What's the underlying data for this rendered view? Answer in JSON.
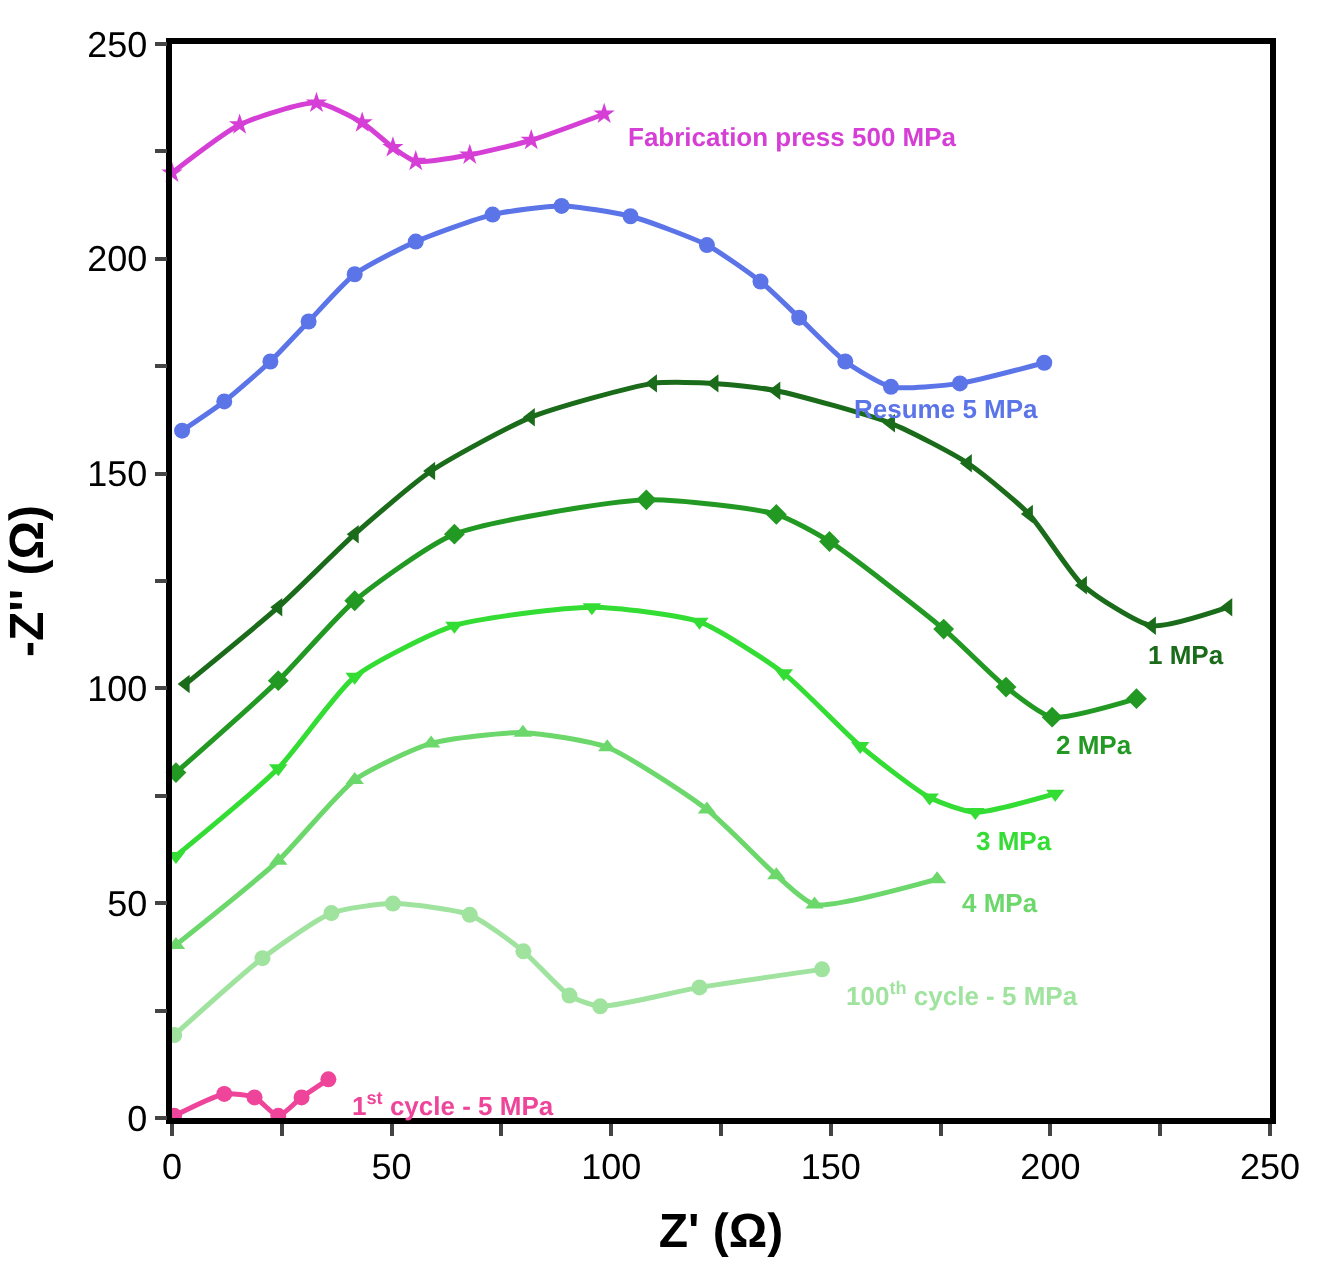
{
  "chart_data": {
    "type": "line",
    "xlabel": "Z' (Ω)",
    "ylabel": "-Z'' (Ω)",
    "xlim": [
      0,
      250
    ],
    "ylim": [
      0,
      250
    ],
    "xticks": [
      0,
      {
        "value": 25,
        "label": null
      },
      50,
      {
        "value": 75,
        "label": null
      },
      100,
      {
        "value": 125,
        "label": null
      },
      150,
      {
        "value": 175,
        "label": null
      },
      200,
      {
        "value": 225,
        "label": null
      },
      250
    ],
    "yticks": [
      0,
      {
        "value": 25,
        "label": null
      },
      50,
      {
        "value": 75,
        "label": null
      },
      100,
      {
        "value": 125,
        "label": null
      },
      150,
      {
        "value": 175,
        "label": null
      },
      200,
      {
        "value": 225,
        "label": null
      },
      250
    ],
    "legend": false,
    "line_style": "solid",
    "series": [
      {
        "name": "Fabrication press 500 MPa",
        "color": "#d63fd6",
        "marker": "star",
        "x": [
          0,
          15.4,
          32.9,
          43.3,
          50.3,
          55.5,
          67.8,
          81.8,
          98.4
        ],
        "values": [
          220,
          231.2,
          236.3,
          231.7,
          225.9,
          222.7,
          224.2,
          227.6,
          233.7
        ]
      },
      {
        "name": "Resume 5 MPa",
        "color": "#5b74e8",
        "marker": "circle",
        "x": [
          2.3,
          11.9,
          22.4,
          31.1,
          41.6,
          55.5,
          73,
          88.7,
          104.4,
          121.8,
          134,
          142.8,
          153.3,
          163.7,
          179.4,
          198.6
        ],
        "values": [
          160,
          166.8,
          176.1,
          185.4,
          196.4,
          204,
          210.3,
          212.3,
          209.9,
          203.2,
          194.7,
          186.3,
          176.1,
          170.2,
          171,
          175.8
        ]
      },
      {
        "name": "1 MPa",
        "color": "#1a6b1a",
        "marker": "triangle-left",
        "x": [
          3.1,
          24.2,
          41.6,
          59,
          81.7,
          109.5,
          123.5,
          137.6,
          163.7,
          181.2,
          195.1,
          207.4,
          223.1,
          240.5
        ],
        "values": [
          101,
          118.9,
          135.9,
          150.6,
          163.1,
          171,
          171,
          169.3,
          161.7,
          152.4,
          140.6,
          124,
          114.6,
          118.9
        ]
      },
      {
        "name": "2 MPa",
        "color": "#229922",
        "marker": "diamond",
        "x": [
          0.9,
          24.2,
          41.6,
          64.3,
          108,
          137.6,
          149.7,
          175.7,
          189.9,
          200.4,
          219.6
        ],
        "values": [
          80.4,
          101.8,
          120.4,
          135.9,
          143.9,
          140.5,
          134.2,
          113.8,
          100.3,
          93.3,
          97.6
        ]
      },
      {
        "name": "3 MPa",
        "color": "#33dd33",
        "marker": "triangle-down",
        "x": [
          0.9,
          24.2,
          41.6,
          64.3,
          95.6,
          120.1,
          139.3,
          156.7,
          172.5,
          182.9,
          201.1
        ],
        "values": [
          61,
          81.4,
          102.7,
          114.6,
          118.9,
          115.5,
          103.5,
          86.6,
          74.6,
          71.2,
          75.5
        ]
      },
      {
        "name": "4 MPa",
        "color": "#6cd86c",
        "marker": "triangle-up",
        "x": [
          0.9,
          24.2,
          41.6,
          59,
          79.9,
          99.1,
          121.8,
          137.6,
          146.3,
          174.2
        ],
        "values": [
          40.3,
          59.9,
          78.7,
          87.2,
          89.7,
          86.3,
          71.8,
          56.5,
          49.7,
          55.6
        ]
      },
      {
        "name": "100$^{th}$ cycle - 5 MPa",
        "color": "#9fe39f",
        "marker": "circle",
        "x": [
          0.5,
          20.6,
          36.3,
          50.3,
          67.8,
          80,
          90.5,
          97.5,
          120.1,
          148
        ],
        "values": [
          19.3,
          37.2,
          47.7,
          49.9,
          47.3,
          38.8,
          28.5,
          26,
          30.4,
          34.6
        ]
      },
      {
        "name": "1$^{st}$ cycle - 5 MPa",
        "color": "#ee4499",
        "marker": "circle",
        "x": [
          0.5,
          11.9,
          18.8,
          24.2,
          29.5,
          35.6
        ],
        "values": [
          0.5,
          5.6,
          4.8,
          0.5,
          4.8,
          9
        ]
      }
    ]
  }
}
